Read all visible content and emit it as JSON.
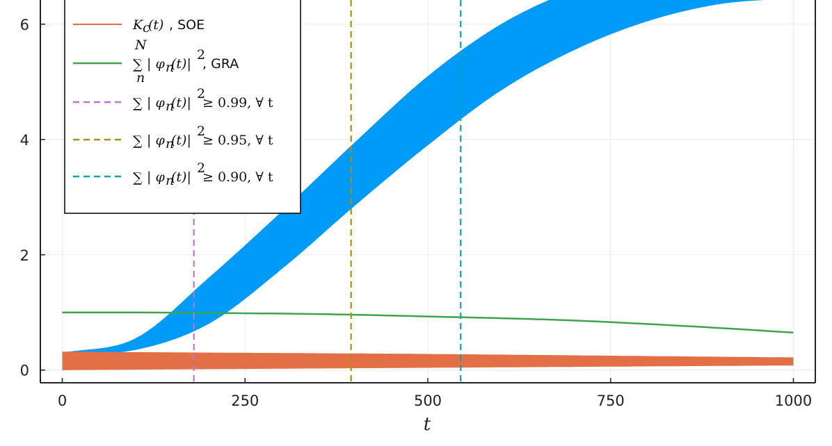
{
  "chart_data": {
    "type": "line",
    "xlabel": "t",
    "ylabel": "",
    "xlim": [
      -30,
      1030
    ],
    "ylim": [
      -0.22,
      6.42
    ],
    "xticks": [
      0,
      250,
      500,
      750,
      1000
    ],
    "xtick_labels": [
      "0",
      "250",
      "500",
      "750",
      "1000"
    ],
    "yticks": [
      0,
      2,
      4,
      6
    ],
    "ytick_labels": [
      "0",
      "2",
      "4",
      "6"
    ],
    "grid": true,
    "legend_position": "top-left",
    "series": [
      {
        "name": "K_c(t), SOE",
        "legend_label": {
          "math": "K",
          "sub": "c",
          "rest": "(t)",
          "text": ", SOE"
        },
        "kind": "band",
        "color": "#e26f46",
        "x": [
          0,
          250,
          500,
          750,
          1000
        ],
        "lower": [
          0.0,
          0.02,
          0.04,
          0.06,
          0.08
        ],
        "upper": [
          0.32,
          0.3,
          0.28,
          0.25,
          0.22
        ]
      },
      {
        "name": "Σ |φ_n(t)|², GRA",
        "legend_label": {
          "sum_top": "N",
          "sum_bottom": "n",
          "math": "| φ",
          "sub": "n",
          "rest": "(t)|",
          "sup": "2",
          "text": ", GRA"
        },
        "kind": "line",
        "color": "#3da44d",
        "x": [
          0,
          100,
          200,
          300,
          400,
          500,
          600,
          700,
          800,
          900,
          1000
        ],
        "y": [
          1.0,
          1.0,
          0.99,
          0.98,
          0.96,
          0.93,
          0.9,
          0.86,
          0.8,
          0.73,
          0.65
        ]
      },
      {
        "name": "Σ |φ_n(t)|² ≥ 0.99, ∀ t",
        "legend_label": {
          "math": "| φ",
          "sub": "n",
          "rest": "(t)|",
          "sup": "2",
          "text": " ≥ 0.99,  ∀ t"
        },
        "kind": "vline",
        "color": "#c271d2",
        "x": 180
      },
      {
        "name": "Σ |φ_n(t)|² ≥ 0.95, ∀ t",
        "legend_label": {
          "math": "| φ",
          "sub": "n",
          "rest": "(t)|",
          "sup": "2",
          "text": " ≥ 0.95,  ∀ t"
        },
        "kind": "vline",
        "color": "#ac8d18",
        "x": 395
      },
      {
        "name": "Σ |φ_n(t)|² ≥ 0.90, ∀ t",
        "legend_label": {
          "math": "| φ",
          "sub": "n",
          "rest": "(t)|",
          "sup": "2",
          "text": " ≥ 0.90,  ∀ t"
        },
        "kind": "vline",
        "color": "#00a9ad",
        "x": 545
      },
      {
        "name": "",
        "kind": "band",
        "color": "#009af9",
        "in_legend": false,
        "x": [
          0,
          100,
          200,
          300,
          400,
          500,
          600,
          700,
          800,
          900,
          1000
        ],
        "lower": [
          0.28,
          0.35,
          0.8,
          1.75,
          2.85,
          3.9,
          4.85,
          5.55,
          6.05,
          6.35,
          6.45
        ],
        "upper": [
          0.3,
          0.55,
          1.6,
          2.75,
          3.95,
          5.1,
          6.0,
          6.6,
          7.0,
          7.2,
          7.25
        ]
      }
    ]
  }
}
